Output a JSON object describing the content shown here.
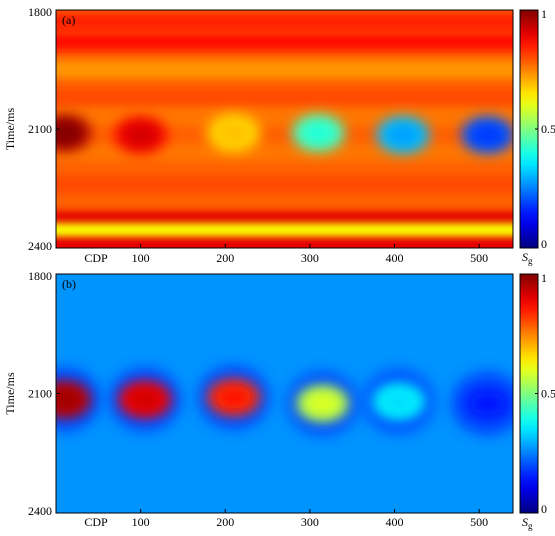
{
  "chart_data": [
    {
      "type": "heatmap",
      "panel_label": "(a)",
      "ylabel": "Time/ms",
      "x_ticks": [
        "CDP",
        "100",
        "200",
        "300",
        "400",
        "500"
      ],
      "x_tick_values": [
        null,
        100,
        200,
        300,
        400,
        500
      ],
      "xlim": [
        0,
        540
      ],
      "y_ticks": [
        1800,
        2100,
        2400
      ],
      "ylim": [
        1800,
        2400
      ],
      "y_inverted": true,
      "colorbar": {
        "label": "S",
        "label_sub": "g",
        "ticks": [
          "0",
          "0.5",
          "1"
        ],
        "range": [
          0,
          1
        ]
      },
      "background_value": 0.78,
      "horizontal_bands": [
        {
          "time": 1830,
          "value": 0.84
        },
        {
          "time": 1880,
          "value": 0.86
        },
        {
          "time": 1950,
          "value": 0.73
        },
        {
          "time": 2020,
          "value": 0.8
        },
        {
          "time": 2070,
          "value": 0.76
        },
        {
          "time": 2160,
          "value": 0.76
        },
        {
          "time": 2240,
          "value": 0.8
        },
        {
          "time": 2330,
          "value": 0.9
        },
        {
          "time": 2360,
          "value": 0.62
        },
        {
          "time": 2395,
          "value": 0.9
        }
      ],
      "anomalies": [
        {
          "cdp": 10,
          "time": 2110,
          "value": 0.96
        },
        {
          "cdp": 100,
          "time": 2115,
          "value": 0.88
        },
        {
          "cdp": 210,
          "time": 2110,
          "value": 0.65
        },
        {
          "cdp": 310,
          "time": 2110,
          "value": 0.45
        },
        {
          "cdp": 410,
          "time": 2115,
          "value": 0.32
        },
        {
          "cdp": 510,
          "time": 2115,
          "value": 0.22
        }
      ]
    },
    {
      "type": "heatmap",
      "panel_label": "(b)",
      "ylabel": "Time/ms",
      "x_ticks": [
        "CDP",
        "100",
        "200",
        "300",
        "400",
        "500"
      ],
      "x_tick_values": [
        null,
        100,
        200,
        300,
        400,
        500
      ],
      "xlim": [
        0,
        540
      ],
      "y_ticks": [
        1800,
        2100,
        2400
      ],
      "ylim": [
        1800,
        2400
      ],
      "y_inverted": true,
      "colorbar": {
        "label": "S",
        "label_sub": "g",
        "ticks": [
          "0",
          "0.5",
          "1"
        ],
        "range": [
          0,
          1
        ]
      },
      "background_value": 0.27,
      "anomalies": [
        {
          "cdp": 10,
          "time": 2115,
          "value": 0.93
        },
        {
          "cdp": 105,
          "time": 2115,
          "value": 0.88
        },
        {
          "cdp": 210,
          "time": 2110,
          "value": 0.82
        },
        {
          "cdp": 315,
          "time": 2125,
          "value": 0.55
        },
        {
          "cdp": 405,
          "time": 2120,
          "value": 0.38
        },
        {
          "cdp": 510,
          "time": 2125,
          "value": 0.18
        }
      ]
    }
  ]
}
